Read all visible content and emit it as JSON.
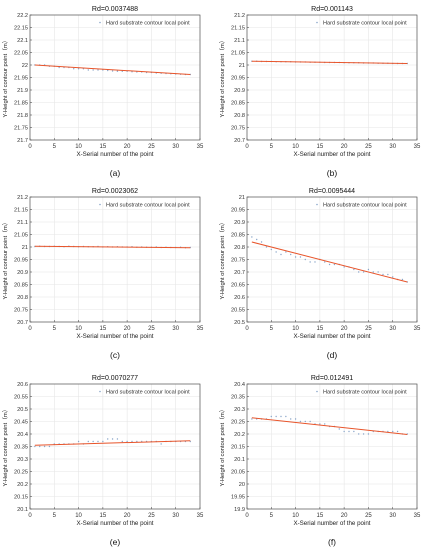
{
  "chart_data": [
    {
      "type": "scatter",
      "title": "Rd=0.0037488",
      "caption": "(a)",
      "xlabel": "X-Serial number of the point",
      "ylabel": "Y-Height of contour point（m）",
      "xlim": [
        0,
        35
      ],
      "ylim": [
        21.7,
        22.2
      ],
      "xticks": [
        0,
        5,
        10,
        15,
        20,
        25,
        30,
        35
      ],
      "yticks": [
        21.7,
        21.75,
        21.8,
        21.85,
        21.9,
        21.95,
        22.0,
        22.05,
        22.1,
        22.15,
        22.2
      ],
      "ytick_labels": [
        "21.7",
        "21.75",
        "21.8",
        "21.85",
        "21.9",
        "21.95",
        "22",
        "22.05",
        "22.1",
        "22.15",
        "22.2"
      ],
      "legend": "Hard substrate contour local point",
      "legend_position": "top-right",
      "grid": true,
      "points": {
        "x": [
          1,
          2,
          3,
          4,
          5,
          6,
          7,
          8,
          9,
          10,
          11,
          12,
          13,
          14,
          15,
          16,
          17,
          18,
          19,
          20,
          21,
          22,
          23,
          24,
          25,
          26,
          27,
          28,
          29,
          30,
          31,
          32,
          33
        ],
        "y": [
          22.0,
          22.0,
          22.0,
          21.995,
          21.995,
          21.99,
          21.99,
          21.99,
          21.985,
          21.985,
          21.985,
          21.98,
          21.98,
          21.98,
          21.98,
          21.978,
          21.976,
          21.975,
          21.975,
          21.975,
          21.973,
          21.972,
          21.972,
          21.97,
          21.97,
          21.968,
          21.967,
          21.966,
          21.965,
          21.964,
          21.963,
          21.962,
          21.962
        ]
      },
      "fit_line": {
        "x": [
          1,
          33
        ],
        "y": [
          22.0,
          21.962
        ]
      }
    },
    {
      "type": "scatter",
      "title": "Rd=0.001143",
      "caption": "(b)",
      "xlabel": "X-Serial number of the point",
      "ylabel": "Y-Height of contour point（m）",
      "xlim": [
        0,
        35
      ],
      "ylim": [
        20.7,
        21.2
      ],
      "xticks": [
        0,
        5,
        10,
        15,
        20,
        25,
        30,
        35
      ],
      "yticks": [
        20.7,
        20.75,
        20.8,
        20.85,
        20.9,
        20.95,
        21.0,
        21.05,
        21.1,
        21.15,
        21.2
      ],
      "ytick_labels": [
        "20.7",
        "20.75",
        "20.8",
        "20.85",
        "20.9",
        "20.95",
        "21",
        "21.05",
        "21.1",
        "21.15",
        "21.2"
      ],
      "legend": "Hard substrate contour local point",
      "legend_position": "top-right",
      "grid": true,
      "points": {
        "x": [
          1,
          2,
          3,
          4,
          5,
          6,
          7,
          8,
          9,
          10,
          11,
          12,
          13,
          14,
          15,
          16,
          17,
          18,
          19,
          20,
          21,
          22,
          23,
          24,
          25,
          26,
          27,
          28,
          29,
          30,
          31,
          32,
          33
        ],
        "y": [
          21.015,
          21.015,
          21.014,
          21.014,
          21.014,
          21.013,
          21.013,
          21.013,
          21.013,
          21.012,
          21.012,
          21.012,
          21.011,
          21.011,
          21.011,
          21.01,
          21.01,
          21.01,
          21.01,
          21.009,
          21.009,
          21.009,
          21.009,
          21.008,
          21.008,
          21.008,
          21.007,
          21.007,
          21.007,
          21.006,
          21.006,
          21.006,
          21.006
        ]
      },
      "fit_line": {
        "x": [
          1,
          33
        ],
        "y": [
          21.015,
          21.006
        ]
      }
    },
    {
      "type": "scatter",
      "title": "Rd=0.0023062",
      "caption": "(c)",
      "xlabel": "X-Serial number of the point",
      "ylabel": "Y-Height of contour point（m）",
      "xlim": [
        0,
        35
      ],
      "ylim": [
        20.7,
        21.2
      ],
      "xticks": [
        0,
        5,
        10,
        15,
        20,
        25,
        30,
        35
      ],
      "yticks": [
        20.7,
        20.75,
        20.8,
        20.85,
        20.9,
        20.95,
        21.0,
        21.05,
        21.1,
        21.15,
        21.2
      ],
      "ytick_labels": [
        "20.7",
        "20.75",
        "20.8",
        "20.85",
        "20.9",
        "20.95",
        "21",
        "21.05",
        "21.1",
        "21.15",
        "21.2"
      ],
      "legend": "Hard substrate contour local point",
      "legend_position": "top-right",
      "grid": true,
      "points": {
        "x": [
          1,
          2,
          3,
          4,
          5,
          6,
          7,
          8,
          9,
          10,
          11,
          12,
          13,
          14,
          15,
          16,
          17,
          18,
          19,
          20,
          21,
          22,
          23,
          24,
          25,
          26,
          27,
          28,
          29,
          30,
          31,
          32,
          33
        ],
        "y": [
          21.002,
          21.003,
          21.002,
          21.002,
          21.003,
          21.002,
          21.001,
          21.003,
          21.002,
          21.001,
          21.002,
          21.001,
          21.001,
          21.002,
          21.0,
          21.001,
          21.0,
          21.001,
          21.0,
          21.0,
          21.001,
          20.999,
          21.0,
          20.999,
          20.999,
          21.0,
          20.998,
          20.999,
          20.998,
          20.998,
          20.999,
          20.997,
          20.998
        ]
      },
      "fit_line": {
        "x": [
          1,
          33
        ],
        "y": [
          21.003,
          20.997
        ]
      }
    },
    {
      "type": "scatter",
      "title": "Rd=0.0095444",
      "caption": "(d)",
      "xlabel": "X-Serial number of the point",
      "ylabel": "Y-Height of contour point（m）",
      "xlim": [
        0,
        35
      ],
      "ylim": [
        20.5,
        21.0
      ],
      "xticks": [
        0,
        5,
        10,
        15,
        20,
        25,
        30,
        35
      ],
      "yticks": [
        20.5,
        20.55,
        20.6,
        20.65,
        20.7,
        20.75,
        20.8,
        20.85,
        20.9,
        20.95,
        21.0
      ],
      "ytick_labels": [
        "20.5",
        "20.55",
        "20.6",
        "20.65",
        "20.7",
        "20.75",
        "20.8",
        "20.85",
        "20.9",
        "20.95",
        "21"
      ],
      "legend": "Hard substrate contour local point",
      "legend_position": "top-right",
      "grid": true,
      "points": {
        "x": [
          1,
          2,
          3,
          4,
          5,
          6,
          7,
          8,
          9,
          10,
          11,
          12,
          13,
          14,
          15,
          16,
          17,
          18,
          19,
          20,
          21,
          22,
          23,
          24,
          25,
          26,
          27,
          28,
          29,
          30,
          31,
          32,
          33
        ],
        "y": [
          20.84,
          20.83,
          20.82,
          20.8,
          20.79,
          20.78,
          20.77,
          20.78,
          20.77,
          20.76,
          20.76,
          20.75,
          20.74,
          20.74,
          20.75,
          20.74,
          20.73,
          20.73,
          20.73,
          20.72,
          20.72,
          20.71,
          20.7,
          20.7,
          20.71,
          20.7,
          20.7,
          20.69,
          20.69,
          20.68,
          20.67,
          20.67,
          20.66
        ]
      },
      "fit_line": {
        "x": [
          1,
          33
        ],
        "y": [
          20.82,
          20.66
        ]
      }
    },
    {
      "type": "scatter",
      "title": "Rd=0.0070277",
      "caption": "(e)",
      "xlabel": "X-Serial number of the point",
      "ylabel": "Y-Height of contour point（m）",
      "xlim": [
        0,
        35
      ],
      "ylim": [
        20.1,
        20.6
      ],
      "xticks": [
        0,
        5,
        10,
        15,
        20,
        25,
        30,
        35
      ],
      "yticks": [
        20.1,
        20.15,
        20.2,
        20.25,
        20.3,
        20.35,
        20.4,
        20.45,
        20.5,
        20.55,
        20.6
      ],
      "ytick_labels": [
        "20.1",
        "20.15",
        "20.2",
        "20.25",
        "20.3",
        "20.35",
        "20.4",
        "20.45",
        "20.5",
        "20.55",
        "20.6"
      ],
      "legend": "Hard substrate contour local point",
      "legend_position": "top-right",
      "grid": true,
      "points": {
        "x": [
          1,
          2,
          3,
          4,
          5,
          6,
          7,
          8,
          9,
          10,
          11,
          12,
          13,
          14,
          15,
          16,
          17,
          18,
          19,
          20,
          21,
          22,
          23,
          24,
          25,
          26,
          27,
          28,
          29,
          30,
          31,
          32,
          33
        ],
        "y": [
          20.35,
          20.35,
          20.35,
          20.35,
          20.36,
          20.36,
          20.36,
          20.36,
          20.36,
          20.37,
          20.36,
          20.37,
          20.37,
          20.37,
          20.37,
          20.38,
          20.38,
          20.38,
          20.37,
          20.37,
          20.37,
          20.37,
          20.37,
          20.37,
          20.37,
          20.37,
          20.36,
          20.37,
          20.37,
          20.37,
          20.37,
          20.37,
          20.37
        ]
      },
      "fit_line": {
        "x": [
          1,
          33
        ],
        "y": [
          20.355,
          20.373
        ]
      }
    },
    {
      "type": "scatter",
      "title": "Rd=0.012491",
      "caption": "(f)",
      "xlabel": "X-Serial number of the point",
      "ylabel": "Y-Height of contour point（m）",
      "xlim": [
        0,
        35
      ],
      "ylim": [
        19.9,
        20.4
      ],
      "xticks": [
        0,
        5,
        10,
        15,
        20,
        25,
        30,
        35
      ],
      "yticks": [
        19.9,
        19.95,
        20.0,
        20.05,
        20.1,
        20.15,
        20.2,
        20.25,
        20.3,
        20.35,
        20.4
      ],
      "ytick_labels": [
        "19.9",
        "19.95",
        "20",
        "20.05",
        "20.1",
        "20.15",
        "20.2",
        "20.25",
        "20.3",
        "20.35",
        "20.4"
      ],
      "legend": "Hard substrate contour local point",
      "legend_position": "top-right",
      "grid": true,
      "points": {
        "x": [
          1,
          2,
          3,
          4,
          5,
          6,
          7,
          8,
          9,
          10,
          11,
          12,
          13,
          14,
          15,
          16,
          17,
          18,
          19,
          20,
          21,
          22,
          23,
          24,
          25,
          26,
          27,
          28,
          29,
          30,
          31,
          32,
          33
        ],
        "y": [
          20.26,
          20.26,
          20.26,
          20.26,
          20.27,
          20.27,
          20.27,
          20.27,
          20.26,
          20.26,
          20.25,
          20.25,
          20.25,
          20.24,
          20.24,
          20.24,
          20.23,
          20.23,
          20.22,
          20.21,
          20.21,
          20.21,
          20.2,
          20.2,
          20.2,
          20.21,
          20.21,
          20.21,
          20.21,
          20.21,
          20.21,
          20.2,
          20.2
        ]
      },
      "fit_line": {
        "x": [
          1,
          33
        ],
        "y": [
          20.265,
          20.198
        ]
      }
    }
  ]
}
